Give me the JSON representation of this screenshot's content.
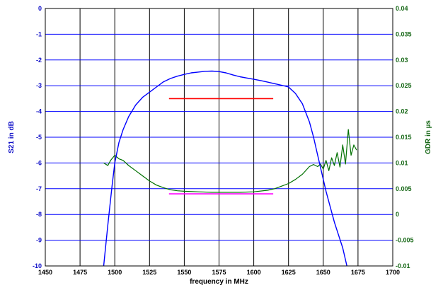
{
  "chart_data": {
    "type": "line",
    "title": "",
    "xlabel": "frequency in MHz",
    "ylabel_left": "S21 in dB",
    "ylabel_right": "GDR in µs",
    "xlim": [
      1450,
      1700
    ],
    "ylim_left": [
      -10,
      0
    ],
    "ylim_right": [
      -0.01,
      0.04
    ],
    "x_ticks": [
      "1450",
      "1475",
      "1500",
      "1525",
      "1550",
      "1575",
      "1600",
      "1625",
      "1650",
      "1675",
      "1700"
    ],
    "y_left_ticks": [
      "0",
      "-1",
      "-2",
      "-3",
      "-4",
      "-5",
      "-6",
      "-7",
      "-8",
      "-9",
      "-10"
    ],
    "y_right_ticks": [
      "0.04",
      "0.035",
      "0.03",
      "0.025",
      "0.02",
      "0.015",
      "0.01",
      "0.005",
      "0",
      "-0.005",
      "-0.01"
    ],
    "grid": true,
    "colors": {
      "s21": "#0000ff",
      "gdr": "#007000",
      "s21_spec": "#ff0000",
      "gdr_spec": "#ff00ff",
      "left_axis": "#1010c8",
      "right_axis": "#1a6a1a",
      "grid_vertical": "#000000",
      "grid_horizontal": "#0000ff"
    },
    "series": [
      {
        "axis": "left",
        "x": [
          1492,
          1495,
          1498,
          1500,
          1503,
          1506,
          1510,
          1515,
          1520,
          1525,
          1530,
          1535,
          1540,
          1545,
          1550,
          1555,
          1560,
          1565,
          1570,
          1575,
          1580,
          1585,
          1590,
          1595,
          1600,
          1605,
          1610,
          1615,
          1620,
          1625,
          1630,
          1635,
          1640,
          1643,
          1646,
          1649,
          1652,
          1655,
          1658,
          1661,
          1664,
          1667
        ],
        "y": [
          -10,
          -8.4,
          -6.9,
          -6.0,
          -5.2,
          -4.7,
          -4.2,
          -3.75,
          -3.45,
          -3.25,
          -3.05,
          -2.85,
          -2.72,
          -2.63,
          -2.56,
          -2.5,
          -2.47,
          -2.44,
          -2.43,
          -2.45,
          -2.5,
          -2.58,
          -2.65,
          -2.7,
          -2.75,
          -2.8,
          -2.86,
          -2.92,
          -2.98,
          -3.05,
          -3.3,
          -3.7,
          -4.4,
          -5.0,
          -5.7,
          -6.4,
          -7.1,
          -7.7,
          -8.3,
          -8.8,
          -9.3,
          -10
        ]
      },
      {
        "axis": "right",
        "x": [
          1492,
          1495,
          1497,
          1500,
          1503,
          1506,
          1510,
          1515,
          1520,
          1525,
          1530,
          1535,
          1540,
          1545,
          1550,
          1560,
          1570,
          1580,
          1590,
          1600,
          1610,
          1615,
          1620,
          1625,
          1630,
          1635,
          1640,
          1643,
          1646,
          1648,
          1650,
          1652,
          1654,
          1656,
          1658,
          1660,
          1662,
          1664,
          1666,
          1668,
          1670,
          1672,
          1674
        ],
        "y": [
          0.01,
          0.0095,
          0.0105,
          0.0115,
          0.0108,
          0.0105,
          0.0095,
          0.0085,
          0.0075,
          0.0065,
          0.0057,
          0.0052,
          0.0048,
          0.0046,
          0.0045,
          0.0044,
          0.0043,
          0.0043,
          0.0043,
          0.0044,
          0.0047,
          0.005,
          0.0055,
          0.006,
          0.0068,
          0.0078,
          0.0093,
          0.0097,
          0.0093,
          0.0098,
          0.0088,
          0.0105,
          0.0085,
          0.011,
          0.0095,
          0.012,
          0.0092,
          0.0135,
          0.0098,
          0.0165,
          0.0115,
          0.0135,
          0.0125
        ]
      },
      {
        "axis": "left",
        "x": [
          1539,
          1614
        ],
        "y": [
          -3.5,
          -3.5
        ]
      },
      {
        "axis": "right",
        "x": [
          1539,
          1614
        ],
        "y": [
          0.004,
          0.004
        ]
      }
    ]
  }
}
